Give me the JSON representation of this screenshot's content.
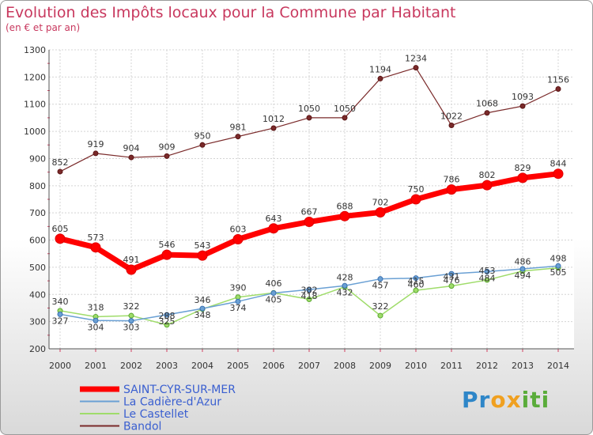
{
  "title": "Evolution des Impôts locaux pour la Commune par Habitant",
  "subtitle": "(en € et par an)",
  "logo": {
    "part1": "Pr",
    "part2": "ox",
    "part3": "iti"
  },
  "chart_data": {
    "type": "line",
    "x": [
      "2000",
      "2001",
      "2002",
      "2003",
      "2004",
      "2005",
      "2006",
      "2007",
      "2008",
      "2009",
      "2010",
      "2011",
      "2012",
      "2013",
      "2014"
    ],
    "ylim": [
      200,
      1300
    ],
    "yticks": [
      "200",
      "300",
      "400",
      "500",
      "600",
      "700",
      "800",
      "900",
      "1000",
      "1100",
      "1200",
      "1300"
    ],
    "grid": true,
    "legend": "bottom-left",
    "series": [
      {
        "name": "SAINT-CYR-SUR-MER",
        "color": "#ff0000",
        "values": [
          605,
          573,
          491,
          546,
          543,
          603,
          643,
          667,
          688,
          702,
          750,
          786,
          802,
          829,
          844
        ],
        "labels": [
          "605",
          "573",
          "491",
          "546",
          "543",
          "603",
          "643",
          "667",
          "688",
          "702",
          "750",
          "786",
          "802",
          "829",
          "844"
        ]
      },
      {
        "name": "La Cadière-d'Azur",
        "color": "#6aa0d4",
        "values": [
          327,
          304,
          303,
          325,
          348,
          374,
          405,
          418,
          432,
          457,
          460,
          476,
          484,
          494,
          505
        ],
        "labels": [
          "327",
          "304",
          "303",
          "325",
          "348",
          "374",
          "405",
          "418",
          "432",
          "457",
          "460",
          "476",
          "484",
          "494",
          "505"
        ]
      },
      {
        "name": "Le Castellet",
        "color": "#9fdc6a",
        "values": [
          340,
          318,
          322,
          288,
          346,
          390,
          406,
          382,
          428,
          322,
          415,
          431,
          453,
          486,
          498
        ],
        "labels": [
          "340",
          "318",
          "322",
          "288",
          "346",
          "390",
          "406",
          "382",
          "428",
          "322",
          "415",
          "431",
          "453",
          "486",
          "498"
        ]
      },
      {
        "name": "Bandol",
        "color": "#7a2a2a",
        "values": [
          852,
          919,
          904,
          909,
          950,
          981,
          1012,
          1050,
          1050,
          1194,
          1234,
          1022,
          1068,
          1093,
          1156
        ],
        "labels": [
          "852",
          "919",
          "904",
          "909",
          "950",
          "981",
          "1012",
          "1050",
          "1050",
          "1194",
          "1234",
          "1022",
          "1068",
          "1093",
          "1156"
        ]
      }
    ]
  }
}
